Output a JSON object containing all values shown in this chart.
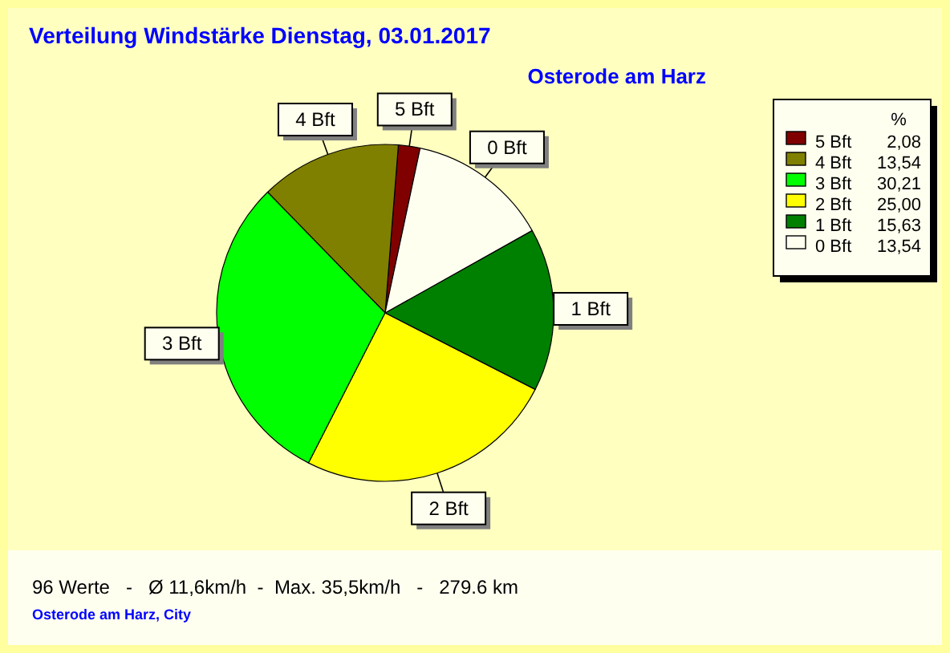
{
  "chart_data": {
    "type": "pie",
    "title": "Verteilung Windstärke  Dienstag, 03.01.2017",
    "subtitle": "Osterode am Harz",
    "legend_title": "%",
    "categories": [
      "5 Bft",
      "4 Bft",
      "3 Bft",
      "2 Bft",
      "1 Bft",
      "0 Bft"
    ],
    "values": [
      2.08,
      13.54,
      30.21,
      25.0,
      15.63,
      13.54
    ],
    "value_labels": [
      "2,08",
      "13,54",
      "30,21",
      "25,00",
      "15,63",
      "13,54"
    ],
    "colors": [
      "#800000",
      "#808000",
      "#00ff00",
      "#ffff00",
      "#008000",
      "#fffff0"
    ],
    "legend": "top right",
    "annotations": [
      "96 Werte   -   Ø 11,6km/h  -  Max. 35,5km/h   -   279.6 km",
      "Osterode am Harz, City"
    ]
  }
}
